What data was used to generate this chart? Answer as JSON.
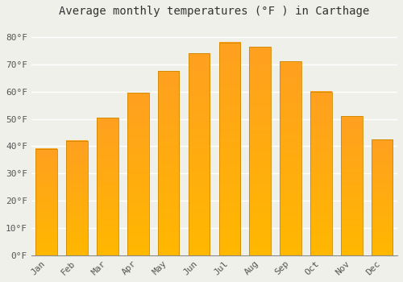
{
  "title": "Average monthly temperatures (°F ) in Carthage",
  "months": [
    "Jan",
    "Feb",
    "Mar",
    "Apr",
    "May",
    "Jun",
    "Jul",
    "Aug",
    "Sep",
    "Oct",
    "Nov",
    "Dec"
  ],
  "values": [
    39,
    42,
    50.5,
    59.5,
    67.5,
    74,
    78,
    76.5,
    71,
    60,
    51,
    42.5
  ],
  "ylim": [
    0,
    85
  ],
  "yticks": [
    0,
    10,
    20,
    30,
    40,
    50,
    60,
    70,
    80
  ],
  "ytick_labels": [
    "0°F",
    "10°F",
    "20°F",
    "30°F",
    "40°F",
    "50°F",
    "60°F",
    "70°F",
    "80°F"
  ],
  "bg_color": "#f0f0ea",
  "grid_color": "#ffffff",
  "bar_color_bottom": "#FFB800",
  "bar_color_top": "#FFA020",
  "bar_edge_color": "#CC8800",
  "title_fontsize": 10,
  "tick_fontsize": 8,
  "bar_width": 0.7
}
